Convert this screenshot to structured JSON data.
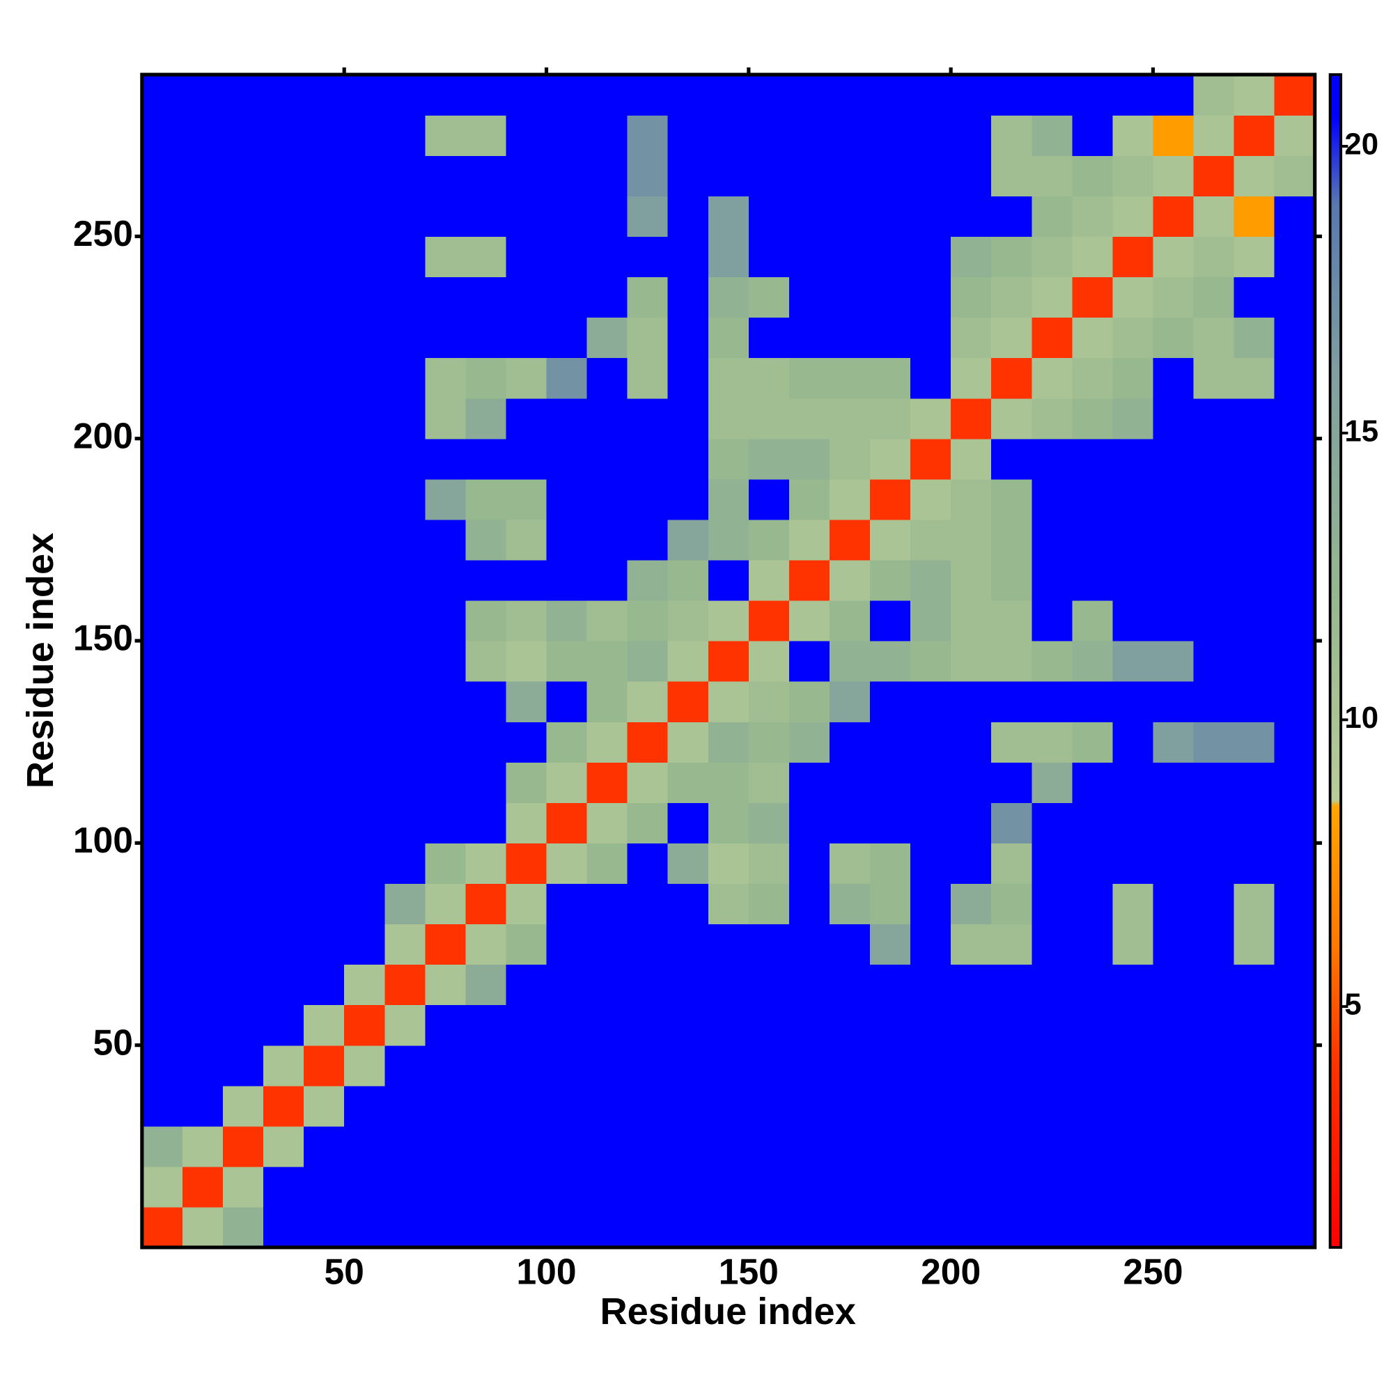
{
  "chart_data": {
    "type": "heatmap",
    "xlabel": "Residue index",
    "ylabel": "Residue index",
    "xlim": [
      0,
      290
    ],
    "ylim": [
      0,
      290
    ],
    "xticks": [
      50,
      100,
      150,
      200,
      250
    ],
    "yticks": [
      50,
      100,
      150,
      200,
      250
    ],
    "x_edges": [
      0,
      10,
      20,
      30,
      40,
      50,
      60,
      70,
      80,
      90,
      100,
      110,
      120,
      130,
      140,
      150,
      160,
      170,
      180,
      190,
      200,
      210,
      220,
      230,
      240,
      250,
      260,
      270,
      280,
      290
    ],
    "y_edges": [
      0,
      10,
      20,
      30,
      40,
      50,
      60,
      70,
      80,
      90,
      100,
      110,
      120,
      130,
      140,
      150,
      160,
      170,
      180,
      190,
      200,
      210,
      220,
      230,
      240,
      250,
      260,
      270,
      280,
      290
    ],
    "z": [
      [
        4,
        10,
        13,
        21,
        21,
        21,
        21,
        21,
        21,
        21,
        21,
        21,
        21,
        21,
        21,
        21,
        21,
        21,
        21,
        21,
        21,
        21,
        21,
        21,
        21,
        21,
        21,
        21,
        21
      ],
      [
        10,
        4,
        10,
        21,
        21,
        21,
        21,
        21,
        21,
        21,
        21,
        21,
        21,
        21,
        21,
        21,
        21,
        21,
        21,
        21,
        21,
        21,
        21,
        21,
        21,
        21,
        21,
        21,
        21
      ],
      [
        13,
        10,
        4,
        10,
        21,
        21,
        21,
        21,
        21,
        21,
        21,
        21,
        21,
        21,
        21,
        21,
        21,
        21,
        21,
        21,
        21,
        21,
        21,
        21,
        21,
        21,
        21,
        21,
        21
      ],
      [
        21,
        21,
        10,
        4,
        10,
        21,
        21,
        21,
        21,
        21,
        21,
        21,
        21,
        21,
        21,
        21,
        21,
        21,
        21,
        21,
        21,
        21,
        21,
        21,
        21,
        21,
        21,
        21,
        21
      ],
      [
        21,
        21,
        21,
        10,
        4,
        10,
        21,
        21,
        21,
        21,
        21,
        21,
        21,
        21,
        21,
        21,
        21,
        21,
        21,
        21,
        21,
        21,
        21,
        21,
        21,
        21,
        21,
        21,
        21
      ],
      [
        21,
        21,
        21,
        21,
        10,
        4,
        10,
        21,
        21,
        21,
        21,
        21,
        21,
        21,
        21,
        21,
        21,
        21,
        21,
        21,
        21,
        21,
        21,
        21,
        21,
        21,
        21,
        21,
        21
      ],
      [
        21,
        21,
        21,
        21,
        21,
        10,
        4,
        10,
        14,
        21,
        21,
        21,
        21,
        21,
        21,
        21,
        21,
        21,
        21,
        21,
        21,
        21,
        21,
        21,
        21,
        21,
        21,
        21,
        21
      ],
      [
        21,
        21,
        21,
        21,
        21,
        21,
        10,
        4,
        10,
        12,
        21,
        21,
        21,
        21,
        21,
        21,
        21,
        21,
        15,
        21,
        11,
        11,
        21,
        21,
        11,
        21,
        21,
        11,
        21
      ],
      [
        21,
        21,
        21,
        21,
        21,
        21,
        14,
        10,
        4,
        10,
        21,
        21,
        21,
        21,
        11,
        12,
        21,
        13,
        12,
        21,
        14,
        12,
        21,
        21,
        11,
        21,
        21,
        11,
        21
      ],
      [
        21,
        21,
        21,
        21,
        21,
        21,
        21,
        12,
        10,
        4,
        10,
        12,
        21,
        14,
        10,
        11,
        21,
        11,
        12,
        21,
        21,
        11,
        21,
        21,
        21,
        21,
        21,
        21,
        21
      ],
      [
        21,
        21,
        21,
        21,
        21,
        21,
        21,
        21,
        21,
        10,
        4,
        10,
        12,
        21,
        12,
        13,
        21,
        21,
        21,
        21,
        21,
        17,
        21,
        21,
        21,
        21,
        21,
        21,
        21
      ],
      [
        21,
        21,
        21,
        21,
        21,
        21,
        21,
        21,
        21,
        12,
        10,
        4,
        10,
        12,
        12,
        11,
        21,
        21,
        21,
        21,
        21,
        21,
        14,
        21,
        21,
        21,
        21,
        21,
        21
      ],
      [
        21,
        21,
        21,
        21,
        21,
        21,
        21,
        21,
        21,
        21,
        12,
        10,
        4,
        10,
        13,
        12,
        13,
        21,
        21,
        21,
        21,
        11,
        11,
        12,
        21,
        16,
        17,
        17,
        21
      ],
      [
        21,
        21,
        21,
        21,
        21,
        21,
        21,
        21,
        21,
        14,
        21,
        12,
        10,
        4,
        10,
        11,
        12,
        15,
        21,
        21,
        21,
        21,
        21,
        21,
        21,
        21,
        21,
        21,
        21
      ],
      [
        21,
        21,
        21,
        21,
        21,
        21,
        21,
        21,
        11,
        10,
        12,
        12,
        13,
        10,
        4,
        10,
        21,
        13,
        13,
        12,
        11,
        11,
        12,
        13,
        16,
        16,
        21,
        21,
        21
      ],
      [
        21,
        21,
        21,
        21,
        21,
        21,
        21,
        21,
        12,
        11,
        13,
        11,
        12,
        11,
        10,
        4,
        10,
        12,
        21,
        13,
        11,
        11,
        21,
        12,
        21,
        21,
        21,
        21,
        21
      ],
      [
        21,
        21,
        21,
        21,
        21,
        21,
        21,
        21,
        21,
        21,
        21,
        21,
        13,
        12,
        21,
        10,
        4,
        10,
        12,
        13,
        11,
        12,
        21,
        21,
        21,
        21,
        21,
        21,
        21
      ],
      [
        21,
        21,
        21,
        21,
        21,
        21,
        21,
        21,
        13,
        11,
        21,
        21,
        21,
        15,
        13,
        12,
        10,
        4,
        10,
        11,
        11,
        12,
        21,
        21,
        21,
        21,
        21,
        21,
        21
      ],
      [
        21,
        21,
        21,
        21,
        21,
        21,
        21,
        15,
        12,
        12,
        21,
        21,
        21,
        21,
        13,
        21,
        12,
        10,
        4,
        10,
        11,
        12,
        21,
        21,
        21,
        21,
        21,
        21,
        21
      ],
      [
        21,
        21,
        21,
        21,
        21,
        21,
        21,
        21,
        21,
        21,
        21,
        21,
        21,
        21,
        12,
        13,
        13,
        11,
        10,
        4,
        10,
        21,
        21,
        21,
        21,
        21,
        21,
        21,
        21
      ],
      [
        21,
        21,
        21,
        21,
        21,
        21,
        21,
        11,
        14,
        21,
        21,
        21,
        21,
        21,
        11,
        11,
        11,
        11,
        11,
        10,
        4,
        10,
        11,
        12,
        13,
        21,
        21,
        21,
        21
      ],
      [
        21,
        21,
        21,
        21,
        21,
        21,
        21,
        11,
        12,
        11,
        17,
        21,
        11,
        21,
        11,
        11,
        12,
        12,
        12,
        21,
        10,
        4,
        10,
        11,
        12,
        21,
        11,
        11,
        21
      ],
      [
        21,
        21,
        21,
        21,
        21,
        21,
        21,
        21,
        21,
        21,
        21,
        14,
        11,
        21,
        12,
        21,
        21,
        21,
        21,
        21,
        11,
        10,
        4,
        10,
        11,
        12,
        11,
        13,
        21
      ],
      [
        21,
        21,
        21,
        21,
        21,
        21,
        21,
        21,
        21,
        21,
        21,
        21,
        12,
        21,
        13,
        12,
        21,
        21,
        21,
        21,
        12,
        11,
        10,
        4,
        10,
        11,
        12,
        21,
        21
      ],
      [
        21,
        21,
        21,
        21,
        21,
        21,
        21,
        11,
        11,
        21,
        21,
        21,
        21,
        21,
        16,
        21,
        21,
        21,
        21,
        21,
        13,
        12,
        11,
        10,
        4,
        10,
        11,
        10,
        21
      ],
      [
        21,
        21,
        21,
        21,
        21,
        21,
        21,
        21,
        21,
        21,
        21,
        21,
        16,
        21,
        16,
        21,
        21,
        21,
        21,
        21,
        21,
        21,
        12,
        11,
        10,
        4,
        10,
        8,
        21
      ],
      [
        21,
        21,
        21,
        21,
        21,
        21,
        21,
        21,
        21,
        21,
        21,
        21,
        17,
        21,
        21,
        21,
        21,
        21,
        21,
        21,
        21,
        11,
        11,
        12,
        11,
        10,
        4,
        10,
        11
      ],
      [
        21,
        21,
        21,
        21,
        21,
        21,
        21,
        11,
        11,
        21,
        21,
        21,
        17,
        21,
        21,
        21,
        21,
        21,
        21,
        21,
        21,
        11,
        13,
        21,
        10,
        8,
        10,
        4,
        10
      ],
      [
        21,
        21,
        21,
        21,
        21,
        21,
        21,
        21,
        21,
        21,
        21,
        21,
        21,
        21,
        21,
        21,
        21,
        21,
        21,
        21,
        21,
        21,
        21,
        21,
        21,
        21,
        11,
        10,
        4
      ]
    ],
    "colorbar": {
      "lim": [
        0.8,
        21.25
      ],
      "ticks": [
        5,
        10,
        15,
        20
      ],
      "stops": [
        {
          "value": 0.8,
          "color": "#ff0000"
        },
        {
          "value": 4,
          "color": "#ff3300"
        },
        {
          "value": 6,
          "color": "#ff7700"
        },
        {
          "value": 8.5,
          "color": "#ffa500"
        },
        {
          "value": 8.6,
          "color": "#b8cc98"
        },
        {
          "value": 12,
          "color": "#98b890"
        },
        {
          "value": 16,
          "color": "#80a0a0"
        },
        {
          "value": 19,
          "color": "#5878b0"
        },
        {
          "value": 20.5,
          "color": "#0000ff"
        },
        {
          "value": 21.25,
          "color": "#0000ff"
        }
      ]
    }
  }
}
